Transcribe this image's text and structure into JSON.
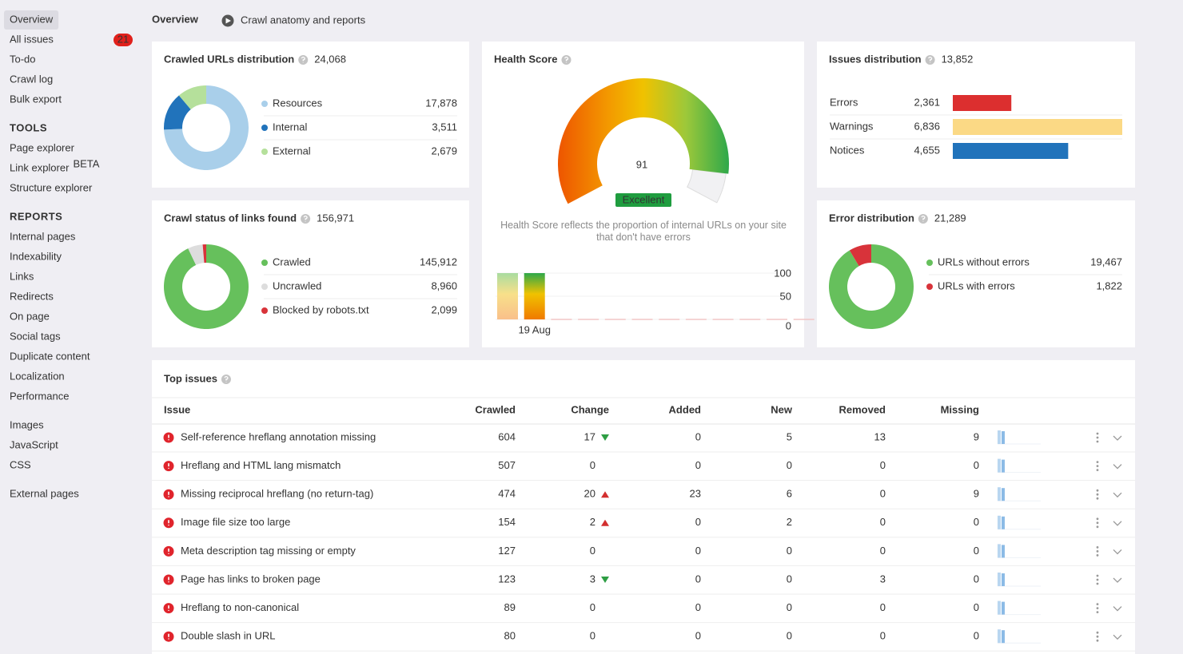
{
  "sidebar": {
    "groups": [
      {
        "items": [
          {
            "label": "Overview"
          },
          {
            "label": "All issues",
            "badge": 21
          },
          {
            "label": "To-do"
          },
          {
            "label": "Crawl log"
          },
          {
            "label": "Bulk export"
          }
        ]
      },
      {
        "heading": "TOOLS",
        "items": [
          {
            "label": "Page explorer"
          },
          {
            "label": "Link explorer",
            "tag": "BETA"
          },
          {
            "label": "Structure explorer"
          }
        ]
      },
      {
        "heading": "REPORTS",
        "items": [
          {
            "label": "Internal pages"
          },
          {
            "label": "Indexability"
          },
          {
            "label": "Links"
          },
          {
            "label": "Redirects"
          },
          {
            "label": "On page"
          },
          {
            "label": "Social tags"
          },
          {
            "label": "Duplicate content"
          },
          {
            "label": "Localization"
          },
          {
            "label": "Performance"
          }
        ]
      },
      {
        "items": [
          {
            "label": "Images"
          },
          {
            "label": "JavaScript"
          },
          {
            "label": "CSS"
          }
        ]
      },
      {
        "items": [
          {
            "label": "External pages"
          }
        ]
      }
    ]
  },
  "header": {
    "title": "Overview",
    "link": "Crawl anatomy and reports"
  },
  "crawled_urls": {
    "title": "Crawled URLs distribution",
    "total": "24,068",
    "labels": [
      "Resources",
      "Internal",
      "External"
    ],
    "values": [
      17878,
      3511,
      2679
    ],
    "value_labels": [
      "17,878",
      "3,511",
      "2,679"
    ],
    "colors": [
      "#a9cfea",
      "#2173bb",
      "#b5e09b"
    ]
  },
  "crawl_status": {
    "title": "Crawl status of links found",
    "total": "156,971",
    "labels": [
      "Crawled",
      "Uncrawled",
      "Blocked by robots.txt"
    ],
    "values": [
      145912,
      8960,
      2099
    ],
    "value_labels": [
      "145,912",
      "8,960",
      "2,099"
    ],
    "colors": [
      "#66c05c",
      "#dddddd",
      "#d8333a"
    ]
  },
  "error_distribution": {
    "title": "Error distribution",
    "total": "21,289",
    "labels": [
      "URLs without errors",
      "URLs with errors"
    ],
    "values": [
      19467,
      1822
    ],
    "value_labels": [
      "19,467",
      "1,822"
    ],
    "colors": [
      "#66c05c",
      "#d8333a"
    ]
  },
  "issues_distribution": {
    "title": "Issues distribution",
    "total": "13,852",
    "labels": [
      "Errors",
      "Warnings",
      "Notices"
    ],
    "values": [
      2361,
      6836,
      4655
    ],
    "value_labels": [
      "2,361",
      "6,836",
      "4,655"
    ],
    "colors": [
      "#dc2f2f",
      "#fbd985",
      "#2173bb"
    ]
  },
  "health_score": {
    "title": "Health Score",
    "score": 91,
    "rating": "Excellent",
    "description": "Health Score reflects the proportion of internal URLs on your site that don't have errors",
    "history": {
      "categories": [
        null,
        "19 Aug",
        null,
        null,
        null,
        null,
        null,
        null,
        null,
        null,
        null,
        null
      ],
      "values": [
        100,
        100,
        null,
        null,
        null,
        null,
        null,
        null,
        null,
        null,
        null,
        null
      ],
      "ylim": [
        0,
        100
      ],
      "yticks": [
        0,
        50,
        100
      ]
    }
  },
  "top_issues": {
    "title": "Top issues",
    "columns": [
      "Issue",
      "Crawled",
      "Change",
      "Added",
      "New",
      "Removed",
      "Missing"
    ],
    "column_colors": [
      null,
      "#333333",
      null,
      "#d32f2f",
      "#d32f2f",
      "#2e9e44",
      "#2e9e44"
    ],
    "trend_colors": {
      "up": "#d32f2f",
      "down": "#2e9e44"
    },
    "zero_color": "#aaaaaa",
    "rows": [
      [
        "Self-reference hreflang annotation missing",
        604,
        17,
        0,
        5,
        13,
        9
      ],
      [
        "Hreflang and HTML lang mismatch",
        507,
        0,
        0,
        0,
        0,
        0
      ],
      [
        "Missing reciprocal hreflang (no return-tag)",
        474,
        20,
        23,
        6,
        0,
        9
      ],
      [
        "Image file size too large",
        154,
        2,
        0,
        2,
        0,
        0
      ],
      [
        "Meta description tag missing or empty",
        127,
        0,
        0,
        0,
        0,
        0
      ],
      [
        "Page has links to broken page",
        123,
        3,
        0,
        0,
        3,
        0
      ],
      [
        "Hreflang to non-canonical",
        89,
        0,
        0,
        0,
        0,
        0
      ],
      [
        "Double slash in URL",
        80,
        0,
        0,
        0,
        0,
        0
      ]
    ],
    "trends": [
      "down",
      null,
      "up",
      "up",
      null,
      "down",
      null,
      null
    ]
  }
}
